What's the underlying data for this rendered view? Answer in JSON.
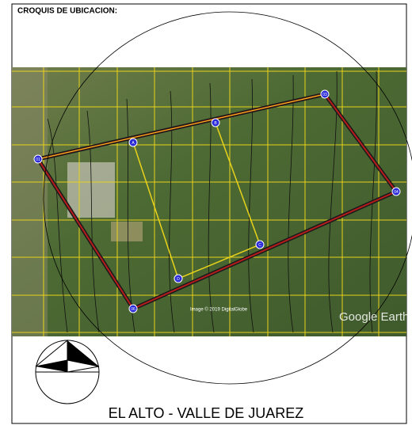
{
  "header": {
    "title": "CROQUIS DE UBICACION:"
  },
  "map": {
    "imagery": "Image © 2019 DigitalGlobe",
    "attribution": "Google Earth",
    "points": [
      {
        "label": "01"
      },
      {
        "label": "03"
      },
      {
        "label": "04"
      },
      {
        "label": "06"
      },
      {
        "label": "A"
      },
      {
        "label": "B"
      },
      {
        "label": "C"
      },
      {
        "label": "D"
      }
    ]
  },
  "footer": {
    "place": "EL ALTO - VALLE DE JUAREZ"
  }
}
